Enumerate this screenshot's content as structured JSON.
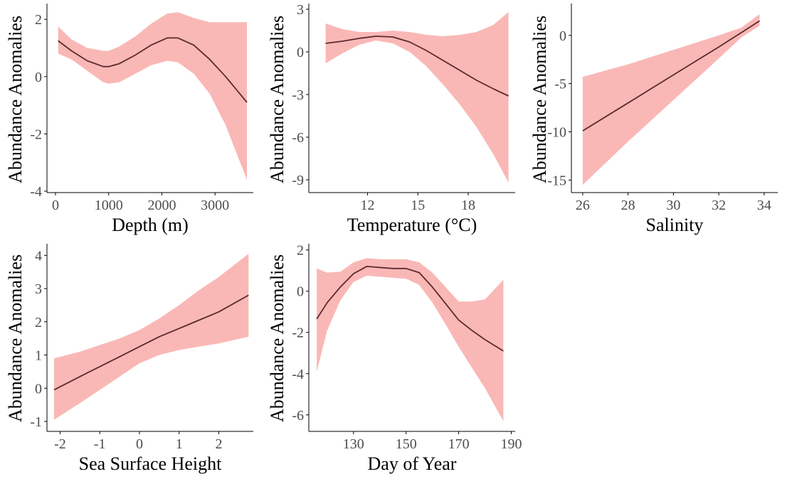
{
  "colors": {
    "ribbon": "#f9b8b6",
    "line": "#5a2a2c",
    "axis": "#000000",
    "tick_text": "#4d4d4d",
    "background": "#ffffff"
  },
  "chart_data": [
    {
      "type": "area",
      "xlabel": "Depth (m)",
      "ylabel": "Abundance Anomalies",
      "xlim": [
        -160,
        3720
      ],
      "ylim": [
        -4.05,
        2.55
      ],
      "xticks": [
        0,
        1000,
        2000,
        3000
      ],
      "yticks": [
        -4,
        -2,
        0,
        2
      ],
      "xtick_labels": [
        "0",
        "1000",
        "2000",
        "3000"
      ],
      "ytick_labels": [
        "-4",
        "-2",
        "0",
        "2"
      ],
      "grid": false,
      "x": [
        50,
        300,
        600,
        900,
        1000,
        1200,
        1500,
        1800,
        2100,
        2300,
        2600,
        2900,
        3200,
        3600
      ],
      "fit": [
        1.25,
        0.9,
        0.55,
        0.35,
        0.35,
        0.45,
        0.75,
        1.1,
        1.35,
        1.35,
        1.1,
        0.6,
        0.0,
        -0.9
      ],
      "lower": [
        0.8,
        0.6,
        0.2,
        -0.2,
        -0.25,
        -0.2,
        0.1,
        0.4,
        0.55,
        0.5,
        0.1,
        -0.6,
        -1.7,
        -3.6
      ],
      "upper": [
        1.75,
        1.3,
        1.0,
        0.9,
        0.9,
        1.05,
        1.4,
        1.85,
        2.2,
        2.25,
        2.05,
        1.9,
        1.9,
        1.9
      ]
    },
    {
      "type": "area",
      "xlabel": "Temperature (°C)",
      "ylabel": "Abundance Anomalies",
      "xlim": [
        8.5,
        20.8
      ],
      "ylim": [
        -9.9,
        3.4
      ],
      "xticks": [
        12,
        15,
        18
      ],
      "yticks": [
        -9,
        -6,
        -3,
        0,
        3
      ],
      "xtick_labels": [
        "12",
        "15",
        "18"
      ],
      "ytick_labels": [
        "-9",
        "-6",
        "-3",
        "0",
        "3"
      ],
      "grid": false,
      "x": [
        9.5,
        10.5,
        11.5,
        12.5,
        13.5,
        14.5,
        15.5,
        16.5,
        17.5,
        18.5,
        19.5,
        20.4
      ],
      "fit": [
        0.6,
        0.75,
        0.95,
        1.1,
        1.05,
        0.7,
        0.1,
        -0.6,
        -1.3,
        -2.0,
        -2.6,
        -3.1
      ],
      "lower": [
        -0.8,
        -0.1,
        0.5,
        0.8,
        0.6,
        0.0,
        -1.0,
        -2.3,
        -3.7,
        -5.3,
        -7.2,
        -9.2
      ],
      "upper": [
        2.0,
        1.6,
        1.4,
        1.4,
        1.5,
        1.4,
        1.2,
        1.1,
        1.2,
        1.4,
        1.9,
        2.8
      ]
    },
    {
      "type": "area",
      "xlabel": "Salinity",
      "ylabel": "Abundance Anomalies",
      "xlim": [
        25.5,
        34.6
      ],
      "ylim": [
        -16.3,
        3.3
      ],
      "xticks": [
        26,
        28,
        30,
        32,
        34
      ],
      "yticks": [
        -15,
        -10,
        -5,
        0
      ],
      "xtick_labels": [
        "26",
        "28",
        "30",
        "32",
        "34"
      ],
      "ytick_labels": [
        "-15",
        "-10",
        "-5",
        "0"
      ],
      "grid": false,
      "x": [
        26,
        28,
        30,
        32,
        33,
        33.8
      ],
      "fit": [
        -9.9,
        -7.0,
        -4.1,
        -1.2,
        0.3,
        1.5
      ],
      "lower": [
        -15.5,
        -11.0,
        -6.7,
        -2.4,
        -0.2,
        1.0
      ],
      "upper": [
        -4.3,
        -3.0,
        -1.5,
        0.0,
        0.8,
        2.2
      ]
    },
    {
      "type": "area",
      "xlabel": "Sea Surface Height",
      "ylabel": "Abundance Anomalies",
      "xlim": [
        -2.33,
        2.87
      ],
      "ylim": [
        -1.3,
        4.35
      ],
      "xticks": [
        -2,
        -1,
        0,
        1,
        2
      ],
      "yticks": [
        -1,
        0,
        1,
        2,
        3,
        4
      ],
      "xtick_labels": [
        "-2",
        "-1",
        "0",
        "1",
        "2"
      ],
      "ytick_labels": [
        "-1",
        "0",
        "1",
        "2",
        "3",
        "4"
      ],
      "grid": false,
      "x": [
        -2.15,
        -1.5,
        -1.0,
        -0.5,
        0.0,
        0.5,
        1.0,
        1.5,
        2.0,
        2.75
      ],
      "fit": [
        -0.05,
        0.35,
        0.65,
        0.95,
        1.25,
        1.55,
        1.8,
        2.05,
        2.3,
        2.8
      ],
      "lower": [
        -0.95,
        -0.45,
        -0.05,
        0.35,
        0.75,
        1.0,
        1.15,
        1.25,
        1.35,
        1.55
      ],
      "upper": [
        0.9,
        1.1,
        1.3,
        1.5,
        1.75,
        2.1,
        2.5,
        2.95,
        3.35,
        4.05
      ]
    },
    {
      "type": "area",
      "xlabel": "Day of Year",
      "ylabel": "Abundance Anomalies",
      "xlim": [
        113,
        191.5
      ],
      "ylim": [
        -6.8,
        2.3
      ],
      "xticks": [
        130,
        150,
        170,
        190
      ],
      "yticks": [
        -6,
        -4,
        -2,
        0,
        2
      ],
      "xtick_labels": [
        "130",
        "150",
        "170",
        "190"
      ],
      "ytick_labels": [
        "-6",
        "-4",
        "-2",
        "0",
        "2"
      ],
      "grid": false,
      "x": [
        116,
        120,
        125,
        130,
        135,
        140,
        145,
        150,
        155,
        160,
        165,
        170,
        175,
        180,
        187
      ],
      "fit": [
        -1.35,
        -0.55,
        0.2,
        0.85,
        1.2,
        1.15,
        1.1,
        1.1,
        0.9,
        0.2,
        -0.6,
        -1.4,
        -1.9,
        -2.35,
        -2.9
      ],
      "lower": [
        -3.9,
        -1.9,
        -0.45,
        0.45,
        0.75,
        0.7,
        0.65,
        0.6,
        0.3,
        -0.55,
        -1.6,
        -2.7,
        -3.7,
        -4.7,
        -6.3
      ],
      "upper": [
        1.1,
        0.9,
        0.95,
        1.4,
        1.6,
        1.55,
        1.55,
        1.55,
        1.4,
        0.9,
        0.2,
        -0.5,
        -0.5,
        -0.4,
        0.55
      ]
    }
  ]
}
